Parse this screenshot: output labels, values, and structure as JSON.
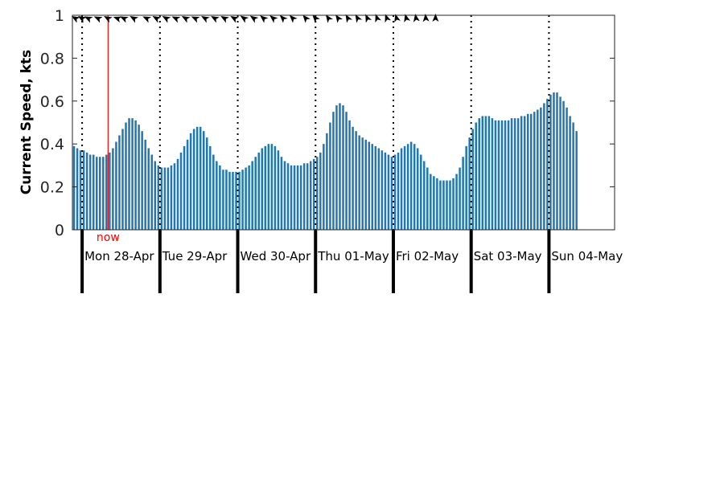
{
  "chart_data": {
    "type": "bar",
    "ylabel": "Current Speed, kts",
    "ylim": [
      0,
      1
    ],
    "yticks": [
      "0",
      "0.2",
      "0.4",
      "0.6",
      "0.8",
      "1"
    ],
    "x_start": "2025-04-27T21:00",
    "interval_hours": 1,
    "day_labels": [
      "Mon 28-Apr",
      "Tue 29-Apr",
      "Wed 30-Apr",
      "Thu 01-May",
      "Fri 02-May",
      "Sat 03-May",
      "Sun 04-May"
    ],
    "now_label": "now",
    "now_time": "2025-04-28T08:00",
    "bar_color": "#1f77b4",
    "now_color": "#ff0000",
    "values": [
      0.39,
      0.38,
      0.37,
      0.37,
      0.36,
      0.35,
      0.35,
      0.34,
      0.34,
      0.34,
      0.35,
      0.36,
      0.38,
      0.41,
      0.44,
      0.47,
      0.5,
      0.52,
      0.52,
      0.51,
      0.49,
      0.46,
      0.42,
      0.38,
      0.35,
      0.32,
      0.3,
      0.29,
      0.29,
      0.29,
      0.3,
      0.31,
      0.33,
      0.36,
      0.39,
      0.42,
      0.45,
      0.47,
      0.48,
      0.48,
      0.46,
      0.43,
      0.39,
      0.35,
      0.32,
      0.3,
      0.28,
      0.28,
      0.27,
      0.27,
      0.27,
      0.27,
      0.28,
      0.29,
      0.3,
      0.32,
      0.34,
      0.36,
      0.38,
      0.39,
      0.4,
      0.4,
      0.39,
      0.37,
      0.34,
      0.32,
      0.31,
      0.3,
      0.3,
      0.3,
      0.3,
      0.31,
      0.31,
      0.32,
      0.33,
      0.34,
      0.36,
      0.4,
      0.45,
      0.5,
      0.55,
      0.58,
      0.59,
      0.58,
      0.55,
      0.51,
      0.48,
      0.46,
      0.44,
      0.43,
      0.42,
      0.41,
      0.4,
      0.39,
      0.38,
      0.37,
      0.36,
      0.35,
      0.34,
      0.35,
      0.36,
      0.38,
      0.39,
      0.4,
      0.41,
      0.4,
      0.38,
      0.35,
      0.32,
      0.29,
      0.26,
      0.25,
      0.24,
      0.23,
      0.23,
      0.23,
      0.23,
      0.24,
      0.26,
      0.29,
      0.34,
      0.39,
      0.43,
      0.47,
      0.5,
      0.52,
      0.53,
      0.53,
      0.53,
      0.52,
      0.51,
      0.51,
      0.51,
      0.51,
      0.51,
      0.52,
      0.52,
      0.52,
      0.53,
      0.53,
      0.54,
      0.54,
      0.55,
      0.56,
      0.57,
      0.59,
      0.61,
      0.63,
      0.64,
      0.64,
      0.62,
      0.6,
      0.57,
      0.53,
      0.5,
      0.46
    ],
    "direction_arrows": [
      {
        "time": "2025-04-27T22:00",
        "bearing": 300
      },
      {
        "time": "2025-04-28T00:00",
        "bearing": 300
      },
      {
        "time": "2025-04-28T02:00",
        "bearing": 295
      },
      {
        "time": "2025-04-28T05:00",
        "bearing": 295
      },
      {
        "time": "2025-04-28T08:00",
        "bearing": 300
      },
      {
        "time": "2025-04-28T11:00",
        "bearing": 290
      },
      {
        "time": "2025-04-28T13:00",
        "bearing": 295
      },
      {
        "time": "2025-04-28T16:00",
        "bearing": 300
      },
      {
        "time": "2025-04-28T20:00",
        "bearing": 295
      },
      {
        "time": "2025-04-28T23:00",
        "bearing": 300
      },
      {
        "time": "2025-04-29T02:00",
        "bearing": 300
      },
      {
        "time": "2025-04-29T05:00",
        "bearing": 295
      },
      {
        "time": "2025-04-29T08:00",
        "bearing": 300
      },
      {
        "time": "2025-04-29T11:00",
        "bearing": 295
      },
      {
        "time": "2025-04-29T14:00",
        "bearing": 300
      },
      {
        "time": "2025-04-29T17:00",
        "bearing": 300
      },
      {
        "time": "2025-04-29T20:00",
        "bearing": 300
      },
      {
        "time": "2025-04-29T23:00",
        "bearing": 300
      },
      {
        "time": "2025-04-30T02:00",
        "bearing": 305
      },
      {
        "time": "2025-04-30T05:00",
        "bearing": 305
      },
      {
        "time": "2025-04-30T08:00",
        "bearing": 310
      },
      {
        "time": "2025-04-30T11:00",
        "bearing": 310
      },
      {
        "time": "2025-04-30T14:00",
        "bearing": 315
      },
      {
        "time": "2025-04-30T17:00",
        "bearing": 315
      },
      {
        "time": "2025-04-30T21:00",
        "bearing": 320
      },
      {
        "time": "2025-05-01T00:00",
        "bearing": 320
      },
      {
        "time": "2025-05-01T04:00",
        "bearing": 325
      },
      {
        "time": "2025-05-01T07:00",
        "bearing": 325
      },
      {
        "time": "2025-05-01T10:00",
        "bearing": 330
      },
      {
        "time": "2025-05-01T13:00",
        "bearing": 330
      },
      {
        "time": "2025-05-01T16:00",
        "bearing": 335
      },
      {
        "time": "2025-05-01T19:00",
        "bearing": 340
      },
      {
        "time": "2025-05-01T22:00",
        "bearing": 340
      },
      {
        "time": "2025-05-02T01:00",
        "bearing": 345
      },
      {
        "time": "2025-05-02T04:00",
        "bearing": 345
      },
      {
        "time": "2025-05-02T07:00",
        "bearing": 350
      },
      {
        "time": "2025-05-02T10:00",
        "bearing": 355
      },
      {
        "time": "2025-05-02T13:00",
        "bearing": 0
      }
    ]
  }
}
